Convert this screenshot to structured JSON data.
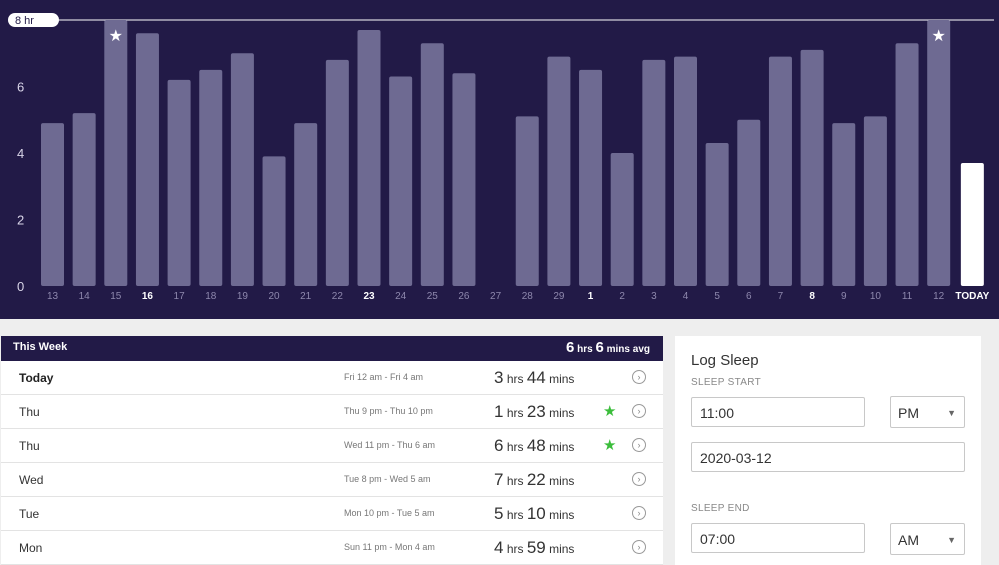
{
  "chart_data": {
    "type": "bar",
    "categories": [
      "13",
      "14",
      "15",
      "16",
      "17",
      "18",
      "19",
      "20",
      "21",
      "22",
      "23",
      "24",
      "25",
      "26",
      "27",
      "28",
      "29",
      "1",
      "2",
      "3",
      "4",
      "5",
      "6",
      "7",
      "8",
      "9",
      "10",
      "11",
      "12",
      "TODAY"
    ],
    "bold_categories": [
      "16",
      "23",
      "1",
      "8",
      "TODAY"
    ],
    "values": [
      4.9,
      5.2,
      8.0,
      7.6,
      6.2,
      6.5,
      7.0,
      3.9,
      4.9,
      6.8,
      7.7,
      6.3,
      7.3,
      6.4,
      0,
      5.1,
      6.9,
      6.5,
      4.0,
      6.8,
      6.9,
      4.3,
      5.0,
      6.9,
      7.1,
      4.9,
      5.1,
      7.3,
      8.0,
      3.7
    ],
    "starred": [
      "15",
      "12"
    ],
    "yticks": [
      0,
      2,
      4,
      6
    ],
    "ylim": [
      0,
      8
    ],
    "goal_label": "8 hr",
    "goal_value": 8,
    "colors": {
      "bar": "#6e6a92",
      "today_bar": "#ffffff",
      "background": "#221a47"
    }
  },
  "week": {
    "title": "This Week",
    "avg": {
      "hrs_num": "6",
      "hrs_unit": "hrs",
      "mins_num": "6",
      "mins_unit": "mins avg"
    },
    "rows": [
      {
        "day": "Today",
        "range": "Fri 12 am - Fri 4 am",
        "hrs": "3",
        "hrs_unit": "hrs",
        "mins": "44",
        "mins_unit": "mins",
        "star": ""
      },
      {
        "day": "Thu",
        "range": "Thu 9 pm - Thu 10 pm",
        "hrs": "1",
        "hrs_unit": "hrs",
        "mins": "23",
        "mins_unit": "mins",
        "star": "★"
      },
      {
        "day": "Thu",
        "range": "Wed 11 pm - Thu 6 am",
        "hrs": "6",
        "hrs_unit": "hrs",
        "mins": "48",
        "mins_unit": "mins",
        "star": "★"
      },
      {
        "day": "Wed",
        "range": "Tue 8 pm - Wed 5 am",
        "hrs": "7",
        "hrs_unit": "hrs",
        "mins": "22",
        "mins_unit": "mins",
        "star": ""
      },
      {
        "day": "Tue",
        "range": "Mon 10 pm - Tue 5 am",
        "hrs": "5",
        "hrs_unit": "hrs",
        "mins": "10",
        "mins_unit": "mins",
        "star": ""
      },
      {
        "day": "Mon",
        "range": "Sun 11 pm - Mon 4 am",
        "hrs": "4",
        "hrs_unit": "hrs",
        "mins": "59",
        "mins_unit": "mins",
        "star": ""
      }
    ],
    "row_icon": "chevron-right-circle-icon"
  },
  "log": {
    "title": "Log Sleep",
    "start_label": "SLEEP START",
    "start_time": "11:00",
    "start_ampm": "PM",
    "start_date": "2020-03-12",
    "end_label": "SLEEP END",
    "end_time": "07:00",
    "end_ampm": "AM"
  }
}
